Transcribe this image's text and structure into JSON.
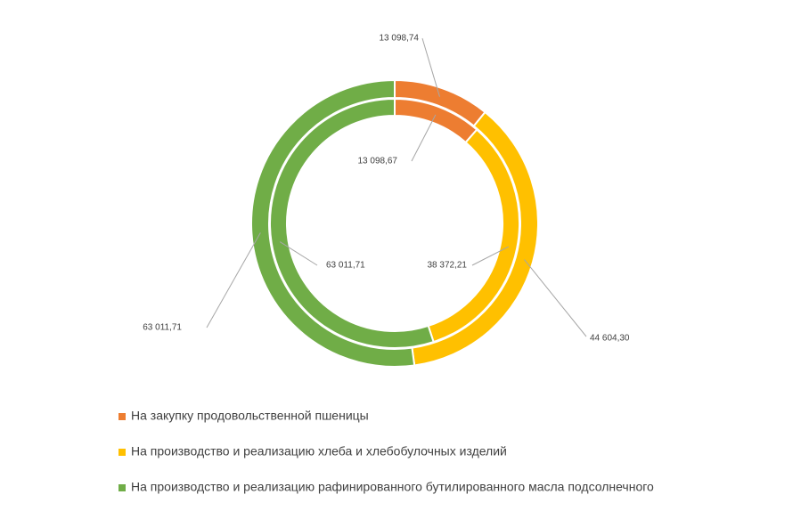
{
  "chart_data": {
    "type": "doughnut",
    "categories": [
      "На закупку продовольственной пшеницы",
      "На производство и реализацию хлеба и хлебобулочных изделий",
      "На производство и реализацию рафинированного бутилированного масла подсолнечного"
    ],
    "colors": [
      "#ed7d31",
      "#ffc000",
      "#70ad47"
    ],
    "series": [
      {
        "values": [
          13098.74,
          44604.3,
          63011.71
        ],
        "value_labels": [
          "13 098,74",
          "44 604,30",
          "63 011,71"
        ]
      },
      {
        "values": [
          13098.67,
          38372.21,
          63011.71
        ],
        "value_labels": [
          "13 098,67",
          "38 372,21",
          "63 011,71"
        ]
      }
    ],
    "legend": "bottom"
  }
}
